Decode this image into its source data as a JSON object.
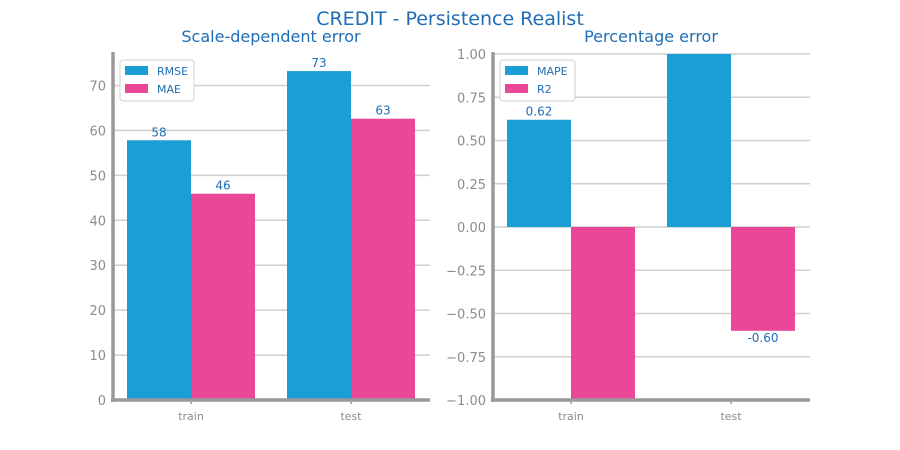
{
  "figure": {
    "title": "CREDIT - Persistence Realist"
  },
  "colors": {
    "series_blue": "#1a9ed6",
    "series_pink": "#ea4799",
    "text_blue": "#1f6db5",
    "axis_gray": "#999999",
    "grid_gray": "#cfcfcf",
    "tick_gray": "#8c8c8c"
  },
  "chart_data": [
    {
      "type": "bar",
      "title": "Scale-dependent error",
      "categories": [
        "train",
        "test"
      ],
      "series": [
        {
          "name": "RMSE",
          "values": [
            57.8,
            73.2
          ],
          "labels": [
            "58",
            "73"
          ]
        },
        {
          "name": "MAE",
          "values": [
            45.9,
            62.6
          ],
          "labels": [
            "46",
            "63"
          ]
        }
      ],
      "ylim": [
        0,
        77
      ],
      "yticks": [
        0,
        10,
        20,
        30,
        40,
        50,
        60,
        70
      ],
      "ytick_labels": [
        "0",
        "10",
        "20",
        "30",
        "40",
        "50",
        "60",
        "70"
      ],
      "grid": true,
      "legend": "top-left"
    },
    {
      "type": "bar",
      "title": "Percentage error",
      "categories": [
        "train",
        "test"
      ],
      "series": [
        {
          "name": "MAPE",
          "values": [
            0.62,
            1.0
          ],
          "labels": [
            "0.62",
            ""
          ]
        },
        {
          "name": "R2",
          "values": [
            -1.0,
            -0.6
          ],
          "labels": [
            "",
            "-0.60"
          ]
        }
      ],
      "ylim": [
        -1.0,
        1.0
      ],
      "yticks": [
        -1.0,
        -0.75,
        -0.5,
        -0.25,
        0.0,
        0.25,
        0.5,
        0.75,
        1.0
      ],
      "ytick_labels": [
        "−1.00",
        "−0.75",
        "−0.50",
        "−0.25",
        "0.00",
        "0.25",
        "0.50",
        "0.75",
        "1.00"
      ],
      "grid": true,
      "legend": "top-left"
    }
  ]
}
